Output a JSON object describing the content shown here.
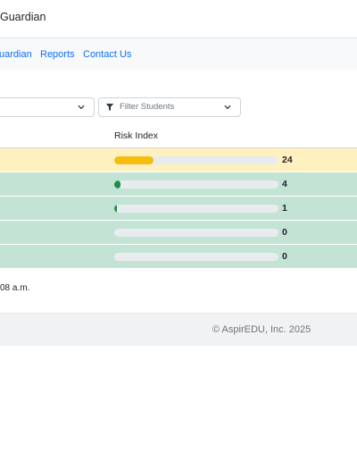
{
  "header": {
    "brand_fragment": "Guardian"
  },
  "nav": {
    "items": [
      "uardian",
      "Reports",
      "Contact Us"
    ]
  },
  "filters": {
    "left_select_value": "",
    "filter_placeholder": "Filter Students"
  },
  "table": {
    "columns": [
      "Risk Index"
    ],
    "rows": [
      {
        "risk_index": 24,
        "fraction": 0.24,
        "bar_color": "#f5bd0d",
        "row_color": "#fff0c0"
      },
      {
        "risk_index": 4,
        "fraction": 0.04,
        "bar_color": "#1e8e4b",
        "row_color": "#c3e4d5"
      },
      {
        "risk_index": 1,
        "fraction": 0.01,
        "bar_color": "#1e8e4b",
        "row_color": "#c3e4d5"
      },
      {
        "risk_index": 0,
        "fraction": 0.0,
        "bar_color": "#1e8e4b",
        "row_color": "#c3e4d5"
      },
      {
        "risk_index": 0,
        "fraction": 0.0,
        "bar_color": "#1e8e4b",
        "row_color": "#c3e4d5"
      }
    ]
  },
  "last_updated": "08 a.m.",
  "footer": {
    "copyright": "© AspirEDU, Inc. 2025"
  },
  "icons": {
    "filter": "filter-icon",
    "chevron": "chevron-down-icon"
  }
}
